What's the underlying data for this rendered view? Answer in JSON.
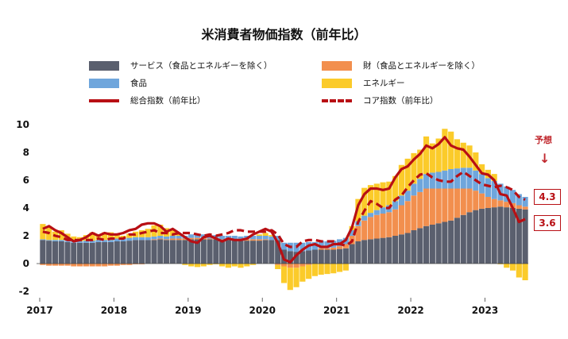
{
  "title": "米消費者物価指数（前年比）",
  "legend": [
    {
      "label": "サービス（食品とエネルギーを除く）",
      "color": "#5a5f6e",
      "kind": "box"
    },
    {
      "label": "財（食品とエネルギーを除く）",
      "color": "#f28f4e",
      "kind": "box"
    },
    {
      "label": "食品",
      "color": "#6fa6dc",
      "kind": "box"
    },
    {
      "label": "エネルギー",
      "color": "#fbcb2a",
      "kind": "box"
    },
    {
      "label": "総合指数（前年比）",
      "color": "#b80f14",
      "kind": "line"
    },
    {
      "label": "コア指数（前年比）",
      "color": "#b80f14",
      "kind": "dash"
    }
  ],
  "annotation": {
    "forecast_label": "予想",
    "arrow": "↓",
    "core_last": "4.3",
    "headline_last": "3.6"
  },
  "chart_data": {
    "type": "bar",
    "stacked": true,
    "frequency": "monthly",
    "start": "2017-01",
    "end": "2023-07",
    "x_tick_labels": [
      "2017",
      "2018",
      "2019",
      "2020",
      "2021",
      "2022",
      "2023"
    ],
    "y_tick_labels": [
      "10",
      "8",
      "6",
      "4",
      "2",
      "0",
      "-2"
    ],
    "ylim": [
      -2,
      10
    ],
    "yticks": [
      -2,
      0,
      2,
      4,
      6,
      8,
      10
    ],
    "series": [
      {
        "name": "サービス（食品とエネルギーを除く）",
        "color": "#5a5f6e",
        "values": [
          1.7,
          1.65,
          1.6,
          1.6,
          1.55,
          1.5,
          1.5,
          1.5,
          1.5,
          1.55,
          1.55,
          1.55,
          1.6,
          1.6,
          1.65,
          1.7,
          1.7,
          1.7,
          1.7,
          1.75,
          1.7,
          1.7,
          1.7,
          1.7,
          1.75,
          1.75,
          1.75,
          1.75,
          1.75,
          1.7,
          1.7,
          1.7,
          1.65,
          1.65,
          1.65,
          1.65,
          1.7,
          1.7,
          1.7,
          1.0,
          0.9,
          0.85,
          0.9,
          0.95,
          1.0,
          1.0,
          1.0,
          1.0,
          1.05,
          1.1,
          1.4,
          1.6,
          1.7,
          1.75,
          1.8,
          1.85,
          1.9,
          2.0,
          2.1,
          2.2,
          2.4,
          2.55,
          2.7,
          2.8,
          2.9,
          3.0,
          3.1,
          3.3,
          3.5,
          3.7,
          3.85,
          3.95,
          4.0,
          4.05,
          4.1,
          4.05,
          4.0,
          3.95,
          3.9
        ]
      },
      {
        "name": "財（食品とエネルギーを除く）",
        "color": "#f28f4e",
        "values": [
          -0.1,
          -0.15,
          -0.15,
          -0.15,
          -0.15,
          -0.2,
          -0.2,
          -0.2,
          -0.2,
          -0.2,
          -0.2,
          -0.15,
          -0.15,
          -0.1,
          -0.1,
          -0.05,
          -0.05,
          0.0,
          0.05,
          0.05,
          0.05,
          0.1,
          0.1,
          0.1,
          0.1,
          0.1,
          0.1,
          0.05,
          0.05,
          0.05,
          0.05,
          0.05,
          0.05,
          0.1,
          0.1,
          0.1,
          0.05,
          0.0,
          -0.1,
          -0.2,
          -0.3,
          -0.3,
          -0.2,
          -0.1,
          0.0,
          0.1,
          0.1,
          0.15,
          0.2,
          0.3,
          0.6,
          1.1,
          1.4,
          1.6,
          1.7,
          1.75,
          1.8,
          1.9,
          2.1,
          2.3,
          2.5,
          2.6,
          2.7,
          2.6,
          2.5,
          2.4,
          2.3,
          2.1,
          1.9,
          1.7,
          1.4,
          1.1,
          0.8,
          0.6,
          0.45,
          0.4,
          0.35,
          0.25,
          0.2
        ]
      },
      {
        "name": "食品",
        "color": "#6fa6dc",
        "values": [
          0.05,
          0.05,
          0.1,
          0.1,
          0.1,
          0.1,
          0.1,
          0.15,
          0.15,
          0.15,
          0.15,
          0.15,
          0.2,
          0.2,
          0.2,
          0.2,
          0.2,
          0.2,
          0.2,
          0.2,
          0.2,
          0.2,
          0.2,
          0.2,
          0.25,
          0.25,
          0.25,
          0.25,
          0.25,
          0.25,
          0.25,
          0.25,
          0.25,
          0.25,
          0.25,
          0.25,
          0.25,
          0.25,
          0.3,
          0.5,
          0.6,
          0.65,
          0.6,
          0.6,
          0.55,
          0.55,
          0.5,
          0.5,
          0.5,
          0.45,
          0.4,
          0.35,
          0.35,
          0.3,
          0.35,
          0.45,
          0.5,
          0.6,
          0.7,
          0.75,
          0.85,
          0.95,
          1.05,
          1.15,
          1.2,
          1.3,
          1.4,
          1.45,
          1.5,
          1.5,
          1.45,
          1.4,
          1.35,
          1.3,
          1.2,
          1.1,
          0.95,
          0.8,
          0.7
        ]
      },
      {
        "name": "エネルギー",
        "color": "#fbcb2a",
        "values": [
          1.1,
          1.0,
          0.6,
          0.7,
          0.5,
          0.35,
          0.3,
          0.4,
          0.6,
          0.4,
          0.55,
          0.55,
          0.3,
          0.2,
          0.3,
          0.4,
          0.5,
          0.6,
          0.8,
          0.8,
          0.6,
          0.4,
          0.1,
          -0.1,
          -0.2,
          -0.25,
          -0.2,
          -0.1,
          -0.05,
          -0.2,
          -0.3,
          -0.2,
          -0.3,
          -0.2,
          -0.1,
          0.1,
          0.2,
          0.1,
          -0.3,
          -1.2,
          -1.6,
          -1.4,
          -1.1,
          -1.0,
          -0.9,
          -0.8,
          -0.75,
          -0.7,
          -0.6,
          -0.5,
          0.3,
          1.6,
          2.0,
          2.0,
          1.9,
          1.8,
          1.7,
          1.8,
          2.2,
          2.3,
          2.2,
          2.1,
          2.7,
          2.1,
          2.4,
          3.0,
          2.7,
          2.1,
          1.8,
          1.6,
          1.3,
          0.7,
          0.6,
          0.5,
          -0.05,
          -0.3,
          -0.5,
          -1.0,
          -1.2
        ]
      },
      {
        "name": "総合指数（前年比）",
        "color": "#b80f14",
        "kind": "line",
        "values": [
          2.5,
          2.7,
          2.4,
          2.2,
          1.9,
          1.6,
          1.7,
          1.9,
          2.2,
          2.0,
          2.2,
          2.1,
          2.1,
          2.2,
          2.4,
          2.5,
          2.8,
          2.9,
          2.9,
          2.7,
          2.3,
          2.5,
          2.2,
          1.9,
          1.6,
          1.5,
          1.9,
          2.0,
          1.8,
          1.6,
          1.8,
          1.7,
          1.7,
          1.8,
          2.1,
          2.3,
          2.5,
          2.3,
          1.5,
          0.3,
          0.1,
          0.6,
          1.0,
          1.3,
          1.4,
          1.2,
          1.2,
          1.4,
          1.4,
          1.7,
          2.6,
          4.2,
          5.0,
          5.4,
          5.4,
          5.3,
          5.4,
          6.2,
          6.8,
          7.0,
          7.5,
          7.9,
          8.5,
          8.3,
          8.6,
          9.1,
          8.5,
          8.3,
          8.2,
          7.7,
          7.1,
          6.5,
          6.4,
          6.0,
          5.0,
          4.9,
          4.0,
          3.0,
          3.2
        ]
      },
      {
        "name": "コア指数（前年比）",
        "color": "#b80f14",
        "kind": "dash",
        "values": [
          2.3,
          2.2,
          2.0,
          1.9,
          1.7,
          1.7,
          1.7,
          1.7,
          1.7,
          1.8,
          1.7,
          1.8,
          1.8,
          1.8,
          2.1,
          2.1,
          2.2,
          2.3,
          2.4,
          2.2,
          2.2,
          2.1,
          2.2,
          2.2,
          2.2,
          2.1,
          2.0,
          2.1,
          2.0,
          2.1,
          2.2,
          2.4,
          2.4,
          2.3,
          2.3,
          2.3,
          2.3,
          2.4,
          2.1,
          1.4,
          1.2,
          1.2,
          1.6,
          1.7,
          1.7,
          1.6,
          1.6,
          1.6,
          1.4,
          1.3,
          1.6,
          3.0,
          3.8,
          4.5,
          4.3,
          4.0,
          4.0,
          4.6,
          4.9,
          5.5,
          6.0,
          6.4,
          6.5,
          6.2,
          6.0,
          5.9,
          5.9,
          6.3,
          6.6,
          6.3,
          6.0,
          5.7,
          5.6,
          5.5,
          5.6,
          5.5,
          5.3,
          4.8,
          4.6
        ]
      }
    ],
    "legend_position": "top",
    "grid": false
  }
}
